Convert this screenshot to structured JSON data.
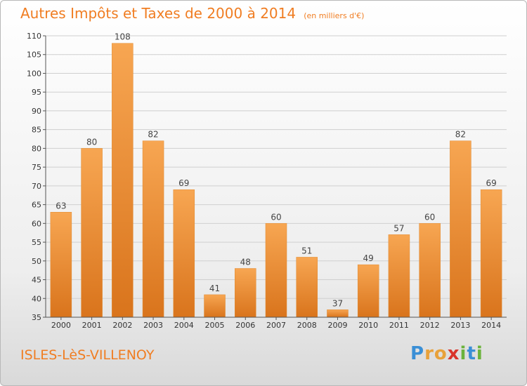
{
  "chart_data": {
    "type": "bar",
    "title": "Autres Impôts et Taxes de 2000 à 2014",
    "subtitle": "(en milliers d'€)",
    "categories": [
      "2000",
      "2001",
      "2002",
      "2003",
      "2004",
      "2005",
      "2006",
      "2007",
      "2008",
      "2009",
      "2010",
      "2011",
      "2012",
      "2013",
      "2014"
    ],
    "values": [
      63,
      80,
      108,
      82,
      69,
      41,
      48,
      60,
      51,
      37,
      49,
      57,
      60,
      82,
      69
    ],
    "ylim": [
      35,
      110
    ],
    "yticks": [
      35,
      40,
      45,
      50,
      55,
      60,
      65,
      70,
      75,
      80,
      85,
      90,
      95,
      100,
      105,
      110
    ],
    "grid": true,
    "bar_color": "#f39c44"
  },
  "footer": {
    "commune": "ISLES-LèS-VILLENOY",
    "logo_letters": [
      {
        "ch": "P",
        "color": "#3a8fd6"
      },
      {
        "ch": "r",
        "color": "#e8a13a"
      },
      {
        "ch": "o",
        "color": "#e8a13a"
      },
      {
        "ch": "x",
        "color": "#d9342b"
      },
      {
        "ch": "i",
        "color": "#6bb33c"
      },
      {
        "ch": "t",
        "color": "#3a8fd6"
      },
      {
        "ch": "i",
        "color": "#6bb33c"
      }
    ]
  }
}
